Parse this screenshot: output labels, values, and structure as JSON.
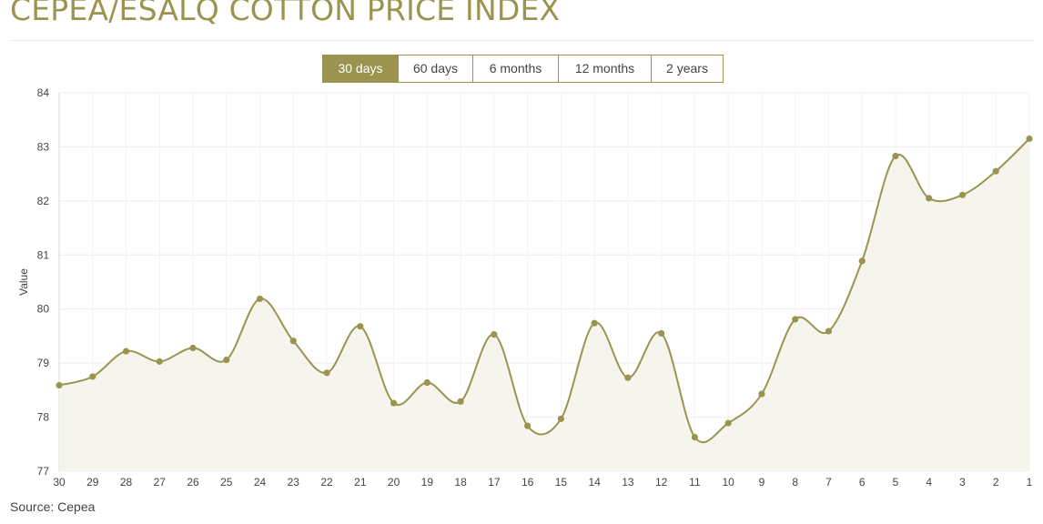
{
  "header": {
    "title": "CEPEA/ESALQ COTTON PRICE INDEX"
  },
  "range_tabs": [
    {
      "label": "30 days",
      "active": true
    },
    {
      "label": "60 days",
      "active": false
    },
    {
      "label": "6 months",
      "active": false
    },
    {
      "label": "12 months",
      "active": false
    },
    {
      "label": "2 years",
      "active": false
    }
  ],
  "footer": {
    "source": "Source: Cepea"
  },
  "colors": {
    "accent": "#9a9450",
    "area_fill": "#f5f5ee",
    "grid": "#ececec",
    "text": "#444444"
  },
  "chart_data": {
    "type": "area",
    "ylabel": "Value",
    "xlabel": "",
    "ylim": [
      77,
      84
    ],
    "yticks": [
      77,
      78,
      79,
      80,
      81,
      82,
      83,
      84
    ],
    "grid": true,
    "x": [
      "30",
      "29",
      "28",
      "27",
      "26",
      "25",
      "24",
      "23",
      "22",
      "21",
      "20",
      "19",
      "18",
      "17",
      "16",
      "15",
      "14",
      "13",
      "12",
      "11",
      "10",
      "9",
      "8",
      "7",
      "6",
      "5",
      "4",
      "3",
      "2",
      "1"
    ],
    "series": [
      {
        "values": [
          78.59,
          78.75,
          79.22,
          79.03,
          79.28,
          79.06,
          80.19,
          79.41,
          78.82,
          79.68,
          78.26,
          78.64,
          78.29,
          79.53,
          77.84,
          77.97,
          79.74,
          78.73,
          79.55,
          77.63,
          77.89,
          78.43,
          79.81,
          79.59,
          80.89,
          82.83,
          82.05,
          82.11,
          82.55,
          83.15
        ]
      }
    ]
  }
}
